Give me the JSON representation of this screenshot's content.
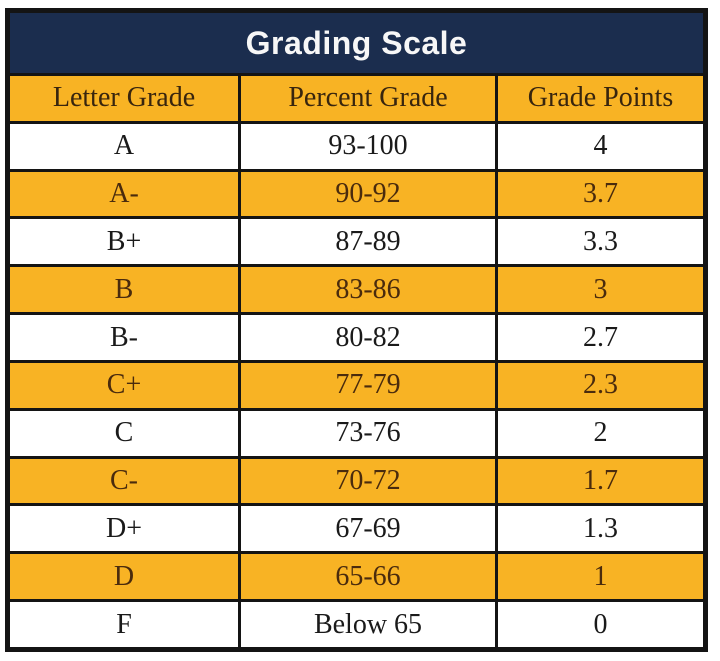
{
  "chart_data": {
    "type": "table",
    "title": "Grading Scale",
    "columns": [
      "Letter Grade",
      "Percent Grade",
      "Grade Points"
    ],
    "rows": [
      [
        "A",
        "93-100",
        "4"
      ],
      [
        "A-",
        "90-92",
        "3.7"
      ],
      [
        "B+",
        "87-89",
        "3.3"
      ],
      [
        "B",
        "83-86",
        "3"
      ],
      [
        "B-",
        "80-82",
        "2.7"
      ],
      [
        "C+",
        "77-79",
        "2.3"
      ],
      [
        "C",
        "73-76",
        "2"
      ],
      [
        "C-",
        "70-72",
        "1.7"
      ],
      [
        "D+",
        "67-69",
        "1.3"
      ],
      [
        "D",
        "65-66",
        "1"
      ],
      [
        "F",
        "Below 65",
        "0"
      ]
    ],
    "layout_hints": {
      "highlighted_row_indices": [
        1,
        3,
        5,
        7,
        9
      ],
      "header_fill": "gold",
      "title_fill": "navy",
      "grid": "on"
    }
  },
  "colors": {
    "navy": "#1b2d4e",
    "gold": "#f8b324",
    "border": "#141414",
    "title_text": "#f7f7f7",
    "text_on_white": "#1a1a1a",
    "text_on_gold": "#4a2b0d"
  }
}
